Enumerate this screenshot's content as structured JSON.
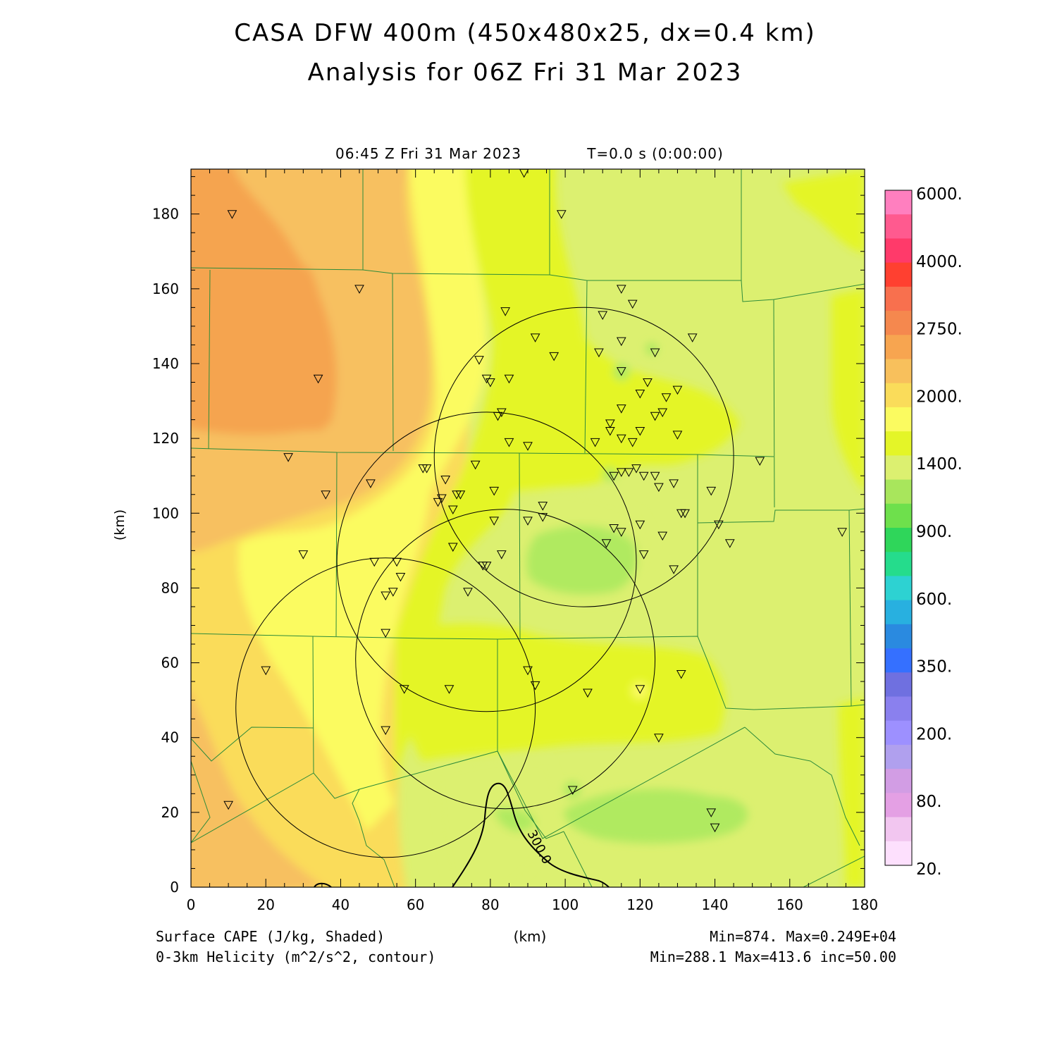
{
  "title_line1": "CASA DFW 400m (450x480x25, dx=0.4 km)",
  "title_line2": "Analysis for 06Z Fri 31 Mar 2023",
  "valid_time": "06:45 Z Fri 31 Mar 2023",
  "sim_time": "T=0.0 s (0:00:00)",
  "x_axis": {
    "label": "(km)",
    "range": [
      0,
      180
    ],
    "ticks": [
      "0",
      "20",
      "40",
      "60",
      "80",
      "100",
      "120",
      "140",
      "160",
      "180"
    ]
  },
  "y_axis": {
    "label": "(km)",
    "range": [
      0,
      192
    ],
    "ticks": [
      "0",
      "20",
      "40",
      "60",
      "80",
      "100",
      "120",
      "140",
      "160",
      "180"
    ]
  },
  "field_shaded": {
    "label": "Surface CAPE (J/kg, Shaded)",
    "stats": "Min=874. Max=0.249E+04"
  },
  "field_contour": {
    "label": "0-3km Helicity (m^2/s^2, contour)",
    "stats": "Min=288.1 Max=413.6 inc=50.00",
    "contour_label": "300.0"
  },
  "colorbar": {
    "labels": [
      "6000.",
      "4000.",
      "2750.",
      "2000.",
      "1400.",
      "900.",
      "600.",
      "350.",
      "200.",
      "80.",
      "20."
    ],
    "colors": [
      "#ff7fbf",
      "#ff5a8f",
      "#ff3a6a",
      "#ff4030",
      "#f8704e",
      "#f5884e",
      "#f7a550",
      "#f8c05c",
      "#fadc5a",
      "#fbfb60",
      "#e4f528",
      "#dcf070",
      "#a8e65c",
      "#6ee04c",
      "#2fd65a",
      "#25dc8c",
      "#2dd2d2",
      "#28b0e0",
      "#2a8ae0",
      "#3570ff",
      "#6f70e0",
      "#8a80ee",
      "#9d90ff",
      "#b0a0ee",
      "#d29de4",
      "#e4a0e4",
      "#f2c6f0",
      "#fde0fd"
    ]
  },
  "colors": {
    "cape_orange": "#f5a450",
    "cape_light_orange": "#f7c060",
    "cape_yellow_orange": "#fadc5a",
    "cape_yellow": "#fbfb60",
    "cape_lime": "#e4f528",
    "cape_pale_green": "#dcf070",
    "cape_green": "#b0ea60",
    "county_line": "#2e8b3a",
    "radar_ring": "#000000"
  },
  "radar_rings_km": [
    {
      "cx": 105,
      "cy": 115,
      "r": 40
    },
    {
      "cx": 79,
      "cy": 87,
      "r": 40
    },
    {
      "cx": 84,
      "cy": 61,
      "r": 40
    },
    {
      "cx": 52,
      "cy": 48,
      "r": 40
    }
  ],
  "stations_km": [
    [
      11,
      180
    ],
    [
      45,
      160
    ],
    [
      34,
      136
    ],
    [
      89,
      191
    ],
    [
      99,
      180
    ],
    [
      84,
      154
    ],
    [
      92,
      147
    ],
    [
      97,
      142
    ],
    [
      77,
      141
    ],
    [
      79,
      136
    ],
    [
      80,
      135
    ],
    [
      85,
      136
    ],
    [
      83,
      127
    ],
    [
      82,
      126
    ],
    [
      85,
      119
    ],
    [
      90,
      118
    ],
    [
      108,
      119
    ],
    [
      110,
      153
    ],
    [
      115,
      160
    ],
    [
      118,
      156
    ],
    [
      109,
      143
    ],
    [
      115,
      146
    ],
    [
      124,
      143
    ],
    [
      134,
      147
    ],
    [
      115,
      138
    ],
    [
      122,
      135
    ],
    [
      120,
      132
    ],
    [
      127,
      131
    ],
    [
      130,
      133
    ],
    [
      115,
      128
    ],
    [
      112,
      124
    ],
    [
      126,
      127
    ],
    [
      124,
      126
    ],
    [
      120,
      122
    ],
    [
      118,
      119
    ],
    [
      115,
      120
    ],
    [
      112,
      122
    ],
    [
      130,
      121
    ],
    [
      26,
      115
    ],
    [
      36,
      105
    ],
    [
      48,
      108
    ],
    [
      62,
      112
    ],
    [
      63,
      112
    ],
    [
      68,
      109
    ],
    [
      76,
      113
    ],
    [
      81,
      106
    ],
    [
      67,
      104
    ],
    [
      66,
      103
    ],
    [
      70,
      101
    ],
    [
      71,
      105
    ],
    [
      72,
      105
    ],
    [
      113,
      110
    ],
    [
      115,
      111
    ],
    [
      117,
      111
    ],
    [
      119,
      112
    ],
    [
      121,
      110
    ],
    [
      124,
      110
    ],
    [
      125,
      107
    ],
    [
      129,
      108
    ],
    [
      139,
      106
    ],
    [
      152,
      114
    ],
    [
      94,
      102
    ],
    [
      94,
      99
    ],
    [
      90,
      98
    ],
    [
      81,
      98
    ],
    [
      113,
      96
    ],
    [
      115,
      95
    ],
    [
      120,
      97
    ],
    [
      126,
      94
    ],
    [
      131,
      100
    ],
    [
      132,
      100
    ],
    [
      141,
      97
    ],
    [
      111,
      92
    ],
    [
      30,
      89
    ],
    [
      49,
      87
    ],
    [
      55,
      87
    ],
    [
      78,
      86
    ],
    [
      79,
      86
    ],
    [
      83,
      89
    ],
    [
      70,
      91
    ],
    [
      56,
      83
    ],
    [
      54,
      79
    ],
    [
      52,
      78
    ],
    [
      74,
      79
    ],
    [
      121,
      89
    ],
    [
      129,
      85
    ],
    [
      144,
      92
    ],
    [
      174,
      95
    ],
    [
      52,
      68
    ],
    [
      20,
      58
    ],
    [
      57,
      53
    ],
    [
      69,
      53
    ],
    [
      90,
      58
    ],
    [
      92,
      54
    ],
    [
      125,
      40
    ],
    [
      106,
      52
    ],
    [
      120,
      53
    ],
    [
      131,
      57
    ],
    [
      52,
      42
    ],
    [
      102,
      26
    ],
    [
      10,
      22
    ],
    [
      139,
      20
    ],
    [
      140,
      16
    ]
  ]
}
